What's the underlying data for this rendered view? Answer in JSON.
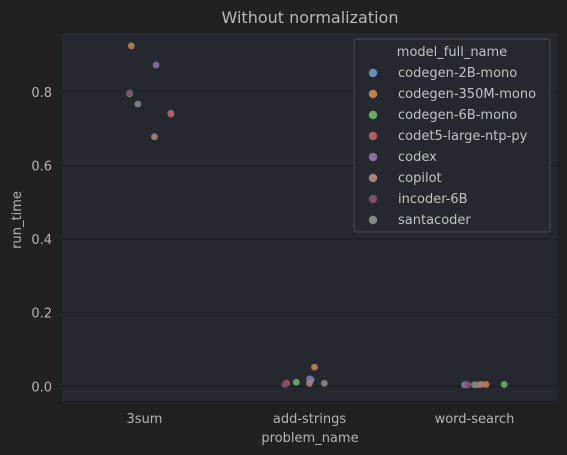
{
  "chart_data": {
    "type": "scatter",
    "title": "Without normalization",
    "xlabel": "problem_name",
    "ylabel": "run_time",
    "categories": [
      "3sum",
      "add-strings",
      "word-search"
    ],
    "yticks": [
      "0.0",
      "0.2",
      "0.4",
      "0.6",
      "0.8"
    ],
    "ylim": [
      -0.04,
      0.96
    ],
    "grid": true,
    "legend": {
      "title": "model_full_name",
      "placement": "top-right"
    },
    "series": [
      {
        "name": "codegen-2B-mono",
        "color": "#6a8fb4",
        "points": [
          {
            "category": "3sum",
            "y": 0.742,
            "jitter": 0.16
          },
          {
            "category": "add-strings",
            "y": 0.018,
            "jitter": 0.01
          },
          {
            "category": "word-search",
            "y": 0.004,
            "jitter": -0.06
          }
        ]
      },
      {
        "name": "codegen-350M-mono",
        "color": "#c0804f",
        "points": [
          {
            "category": "3sum",
            "y": 0.925,
            "jitter": -0.08
          },
          {
            "category": "add-strings",
            "y": 0.052,
            "jitter": 0.03
          },
          {
            "category": "word-search",
            "y": 0.005,
            "jitter": 0.07
          }
        ]
      },
      {
        "name": "codegen-6B-mono",
        "color": "#67ad6a",
        "points": [
          {
            "category": "3sum",
            "y": 0.795,
            "jitter": -0.09
          },
          {
            "category": "add-strings",
            "y": 0.011,
            "jitter": -0.08
          },
          {
            "category": "word-search",
            "y": 0.005,
            "jitter": 0.18
          }
        ]
      },
      {
        "name": "codet5-large-ntp-py",
        "color": "#b3605f",
        "points": [
          {
            "category": "3sum",
            "y": 0.74,
            "jitter": 0.16
          },
          {
            "category": "add-strings",
            "y": 0.008,
            "jitter": -0.14
          },
          {
            "category": "word-search",
            "y": 0.004,
            "jitter": 0.02
          }
        ]
      },
      {
        "name": "codex",
        "color": "#8a6ea6",
        "points": [
          {
            "category": "3sum",
            "y": 0.873,
            "jitter": 0.07
          },
          {
            "category": "add-strings",
            "y": 0.02,
            "jitter": 0.0
          },
          {
            "category": "word-search",
            "y": 0.004,
            "jitter": -0.05
          }
        ]
      },
      {
        "name": "copilot",
        "color": "#a8847c",
        "points": [
          {
            "category": "3sum",
            "y": 0.678,
            "jitter": 0.06
          },
          {
            "category": "add-strings",
            "y": 0.008,
            "jitter": 0.0
          },
          {
            "category": "word-search",
            "y": 0.005,
            "jitter": 0.04
          }
        ]
      },
      {
        "name": "incoder-6B",
        "color": "#7e4e6c",
        "points": [
          {
            "category": "3sum",
            "y": 0.797,
            "jitter": -0.09
          },
          {
            "category": "add-strings",
            "y": 0.005,
            "jitter": -0.15
          },
          {
            "category": "word-search",
            "y": 0.004,
            "jitter": -0.04
          }
        ]
      },
      {
        "name": "santacoder",
        "color": "#878787",
        "points": [
          {
            "category": "3sum",
            "y": 0.767,
            "jitter": -0.04
          },
          {
            "category": "add-strings",
            "y": 0.008,
            "jitter": 0.09
          },
          {
            "category": "word-search",
            "y": 0.004,
            "jitter": 0.0
          }
        ]
      }
    ]
  }
}
